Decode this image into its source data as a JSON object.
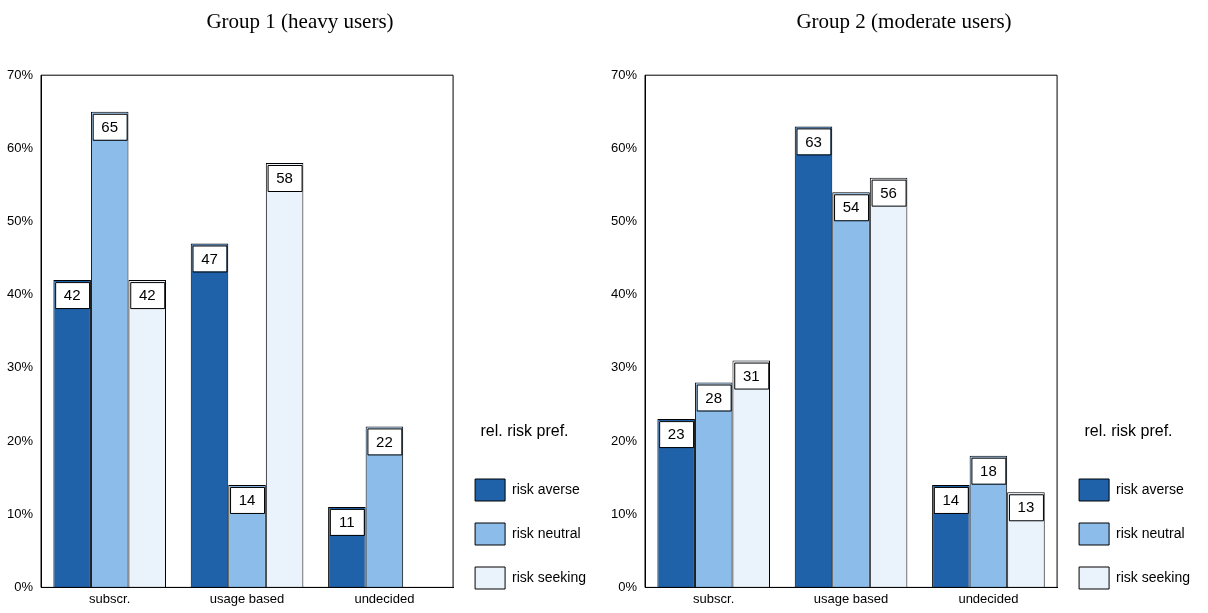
{
  "chart_data": [
    {
      "type": "bar",
      "title": "Group 1 (heavy users)",
      "categories": [
        "subscr.",
        "usage based",
        "undecided"
      ],
      "legend_title": "rel. risk pref.",
      "legend": "right",
      "grid": false,
      "ylim": [
        0,
        70
      ],
      "yticks": [
        {
          "value": 0,
          "label": "0%"
        },
        {
          "value": 10,
          "label": "10%"
        },
        {
          "value": 20,
          "label": "20%"
        },
        {
          "value": 30,
          "label": "30%"
        },
        {
          "value": 40,
          "label": "40%"
        },
        {
          "value": 50,
          "label": "50%"
        },
        {
          "value": 60,
          "label": "60%"
        },
        {
          "value": 70,
          "label": "70%"
        }
      ],
      "series": [
        {
          "name": "risk averse",
          "color": "#1f62aa",
          "values": [
            42,
            47,
            11
          ],
          "value_labels": [
            "42",
            "47",
            "11"
          ]
        },
        {
          "name": "risk neutral",
          "color": "#8cbce9",
          "values": [
            65,
            14,
            22
          ],
          "value_labels": [
            "65",
            "14",
            "22"
          ]
        },
        {
          "name": "risk seeking",
          "color": "#eaf3fc",
          "values": [
            42,
            58,
            0
          ],
          "value_labels": [
            "42",
            "58",
            null
          ]
        }
      ]
    },
    {
      "type": "bar",
      "title": "Group 2 (moderate users)",
      "categories": [
        "subscr.",
        "usage based",
        "undecided"
      ],
      "legend_title": "rel. risk pref.",
      "legend": "right",
      "grid": false,
      "ylim": [
        0,
        70
      ],
      "yticks": [
        {
          "value": 0,
          "label": "0%"
        },
        {
          "value": 10,
          "label": "10%"
        },
        {
          "value": 20,
          "label": "20%"
        },
        {
          "value": 30,
          "label": "30%"
        },
        {
          "value": 40,
          "label": "40%"
        },
        {
          "value": 50,
          "label": "50%"
        },
        {
          "value": 60,
          "label": "60%"
        },
        {
          "value": 70,
          "label": "70%"
        }
      ],
      "series": [
        {
          "name": "risk averse",
          "color": "#1f62aa",
          "values": [
            23,
            63,
            14
          ],
          "value_labels": [
            "23",
            "63",
            "14"
          ]
        },
        {
          "name": "risk neutral",
          "color": "#8cbce9",
          "values": [
            28,
            54,
            18
          ],
          "value_labels": [
            "28",
            "54",
            "18"
          ]
        },
        {
          "name": "risk seeking",
          "color": "#eaf3fc",
          "values": [
            31,
            56,
            13
          ],
          "value_labels": [
            "31",
            "56",
            "13"
          ]
        }
      ]
    }
  ]
}
